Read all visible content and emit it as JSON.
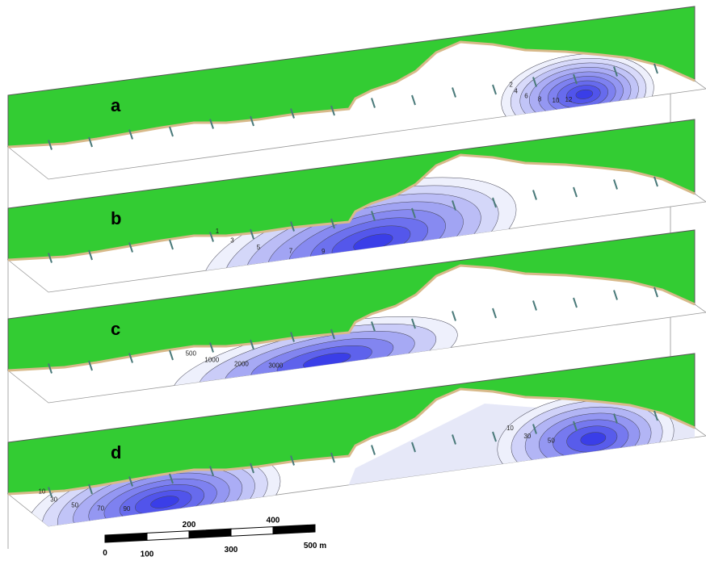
{
  "panels": [
    {
      "label": "a",
      "contour_labels": [
        "2",
        "4",
        "6",
        "8",
        "10",
        "12"
      ]
    },
    {
      "label": "b",
      "contour_labels": [
        "1",
        "3",
        "5",
        "7",
        "9"
      ]
    },
    {
      "label": "c",
      "contour_labels": [
        "500",
        "1000",
        "2000",
        "3000"
      ]
    },
    {
      "label": "d",
      "contour_labels": [
        "10",
        "30",
        "50",
        "70",
        "90",
        "10",
        "30",
        "50"
      ]
    }
  ],
  "scale_bar": {
    "labels": [
      "0",
      "100",
      "200",
      "300",
      "400",
      "500 m"
    ]
  }
}
